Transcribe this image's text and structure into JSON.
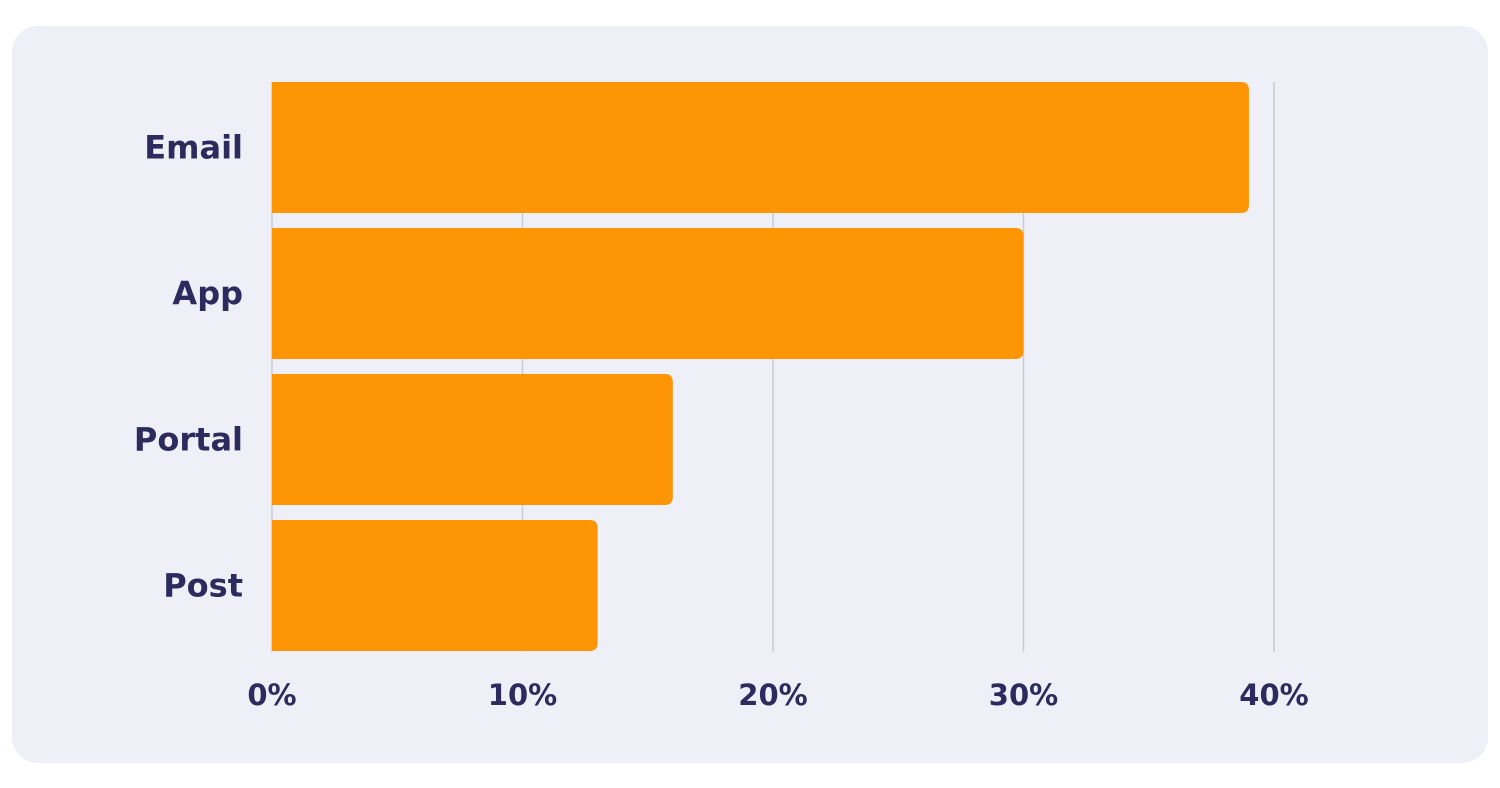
{
  "chart_data": {
    "type": "bar",
    "orientation": "horizontal",
    "categories": [
      "Email",
      "App",
      "Portal",
      "Post"
    ],
    "values": [
      39,
      30,
      16,
      13
    ],
    "value_unit": "%",
    "xlim": [
      0,
      40
    ],
    "x_ticks": [
      0,
      10,
      20,
      30,
      40
    ],
    "x_tick_labels": [
      "0%",
      "10%",
      "20%",
      "30%",
      "40%"
    ],
    "grid": "vertical",
    "title": "",
    "xlabel": "",
    "ylabel": ""
  },
  "colors": {
    "bar": "#fd9504",
    "text": "#2d2b5e",
    "grid": "#c9cad6",
    "background": "#eeeff7"
  }
}
